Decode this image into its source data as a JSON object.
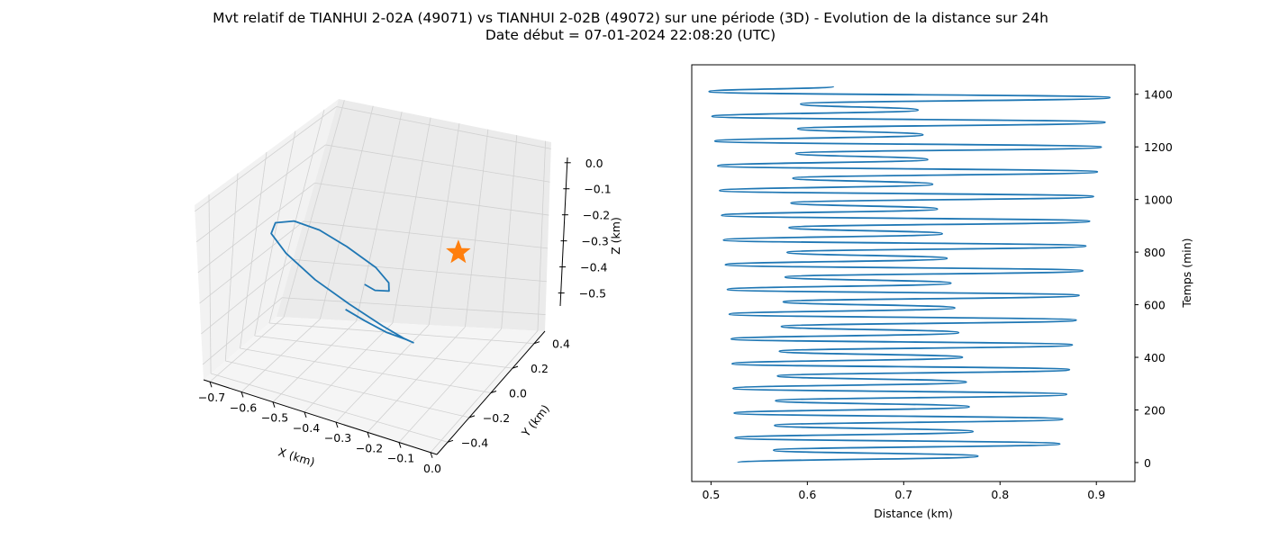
{
  "figure": {
    "title_line1": "Mvt relatif de TIANHUI 2-02A (49071) vs TIANHUI 2-02B (49072) sur une période (3D) - Evolution de la distance sur 24h",
    "title_line2": "Date début = 07-01-2024 22:08:20 (UTC)"
  },
  "chart_data": [
    {
      "type": "line3d",
      "xlabel": "X (km)",
      "ylabel": "Y (km)",
      "zlabel": "Z (km)",
      "x_ticks": [
        "−0.7",
        "−0.6",
        "−0.5",
        "−0.4",
        "−0.3",
        "−0.2",
        "−0.1",
        "0.0"
      ],
      "y_ticks": [
        "−0.4",
        "−0.2",
        "0.0",
        "0.2",
        "0.4"
      ],
      "z_ticks": [
        "0.0",
        "−0.1",
        "−0.2",
        "−0.3",
        "−0.4",
        "−0.5"
      ],
      "xlim": [
        -0.72,
        0.02
      ],
      "ylim": [
        -0.5,
        0.5
      ],
      "zlim": [
        -0.55,
        0.02
      ],
      "series_color": "#1f77b4",
      "marker": {
        "symbol": "star",
        "color": "#ff7f0e",
        "x": 0.0,
        "y": 0.0,
        "z": 0.0
      },
      "path_3d": [
        [
          -0.28,
          -0.38,
          -0.2
        ],
        [
          -0.24,
          -0.3,
          -0.24
        ],
        [
          -0.2,
          -0.18,
          -0.29
        ],
        [
          -0.17,
          -0.05,
          -0.33
        ],
        [
          -0.18,
          0.08,
          -0.37
        ],
        [
          -0.24,
          0.2,
          -0.4
        ],
        [
          -0.33,
          0.3,
          -0.41
        ],
        [
          -0.45,
          0.36,
          -0.39
        ],
        [
          -0.55,
          0.34,
          -0.34
        ],
        [
          -0.62,
          0.26,
          -0.26
        ],
        [
          -0.63,
          0.12,
          -0.17
        ],
        [
          -0.58,
          -0.02,
          -0.09
        ],
        [
          -0.49,
          -0.14,
          -0.03
        ],
        [
          -0.39,
          -0.22,
          -0.01
        ],
        [
          -0.3,
          -0.24,
          -0.03
        ],
        [
          -0.22,
          -0.2,
          -0.08
        ],
        [
          -0.2,
          -0.12,
          -0.14
        ],
        [
          -0.22,
          -0.04,
          -0.19
        ],
        [
          -0.28,
          0.02,
          -0.22
        ],
        [
          -0.32,
          0.05,
          -0.22
        ]
      ]
    },
    {
      "type": "line",
      "xlabel": "Distance (km)",
      "ylabel": "Temps (min)",
      "x_ticks": [
        "0.5",
        "0.6",
        "0.7",
        "0.8",
        "0.9"
      ],
      "y_ticks": [
        "0",
        "200",
        "400",
        "600",
        "800",
        "1000",
        "1200",
        "1400"
      ],
      "xlim": [
        0.48,
        0.94
      ],
      "ylim": [
        -72,
        1512
      ],
      "x_values_desc": "Distance oscillates between a slowly decreasing minimum and increasing maximum with ~47 min half-period",
      "samples": [
        [
          0.528,
          0
        ],
        [
          0.777,
          24
        ],
        [
          0.565,
          47
        ],
        [
          0.862,
          71
        ],
        [
          0.525,
          94
        ],
        [
          0.772,
          118
        ],
        [
          0.566,
          141
        ],
        [
          0.865,
          165
        ],
        [
          0.524,
          188
        ],
        [
          0.768,
          212
        ],
        [
          0.567,
          235
        ],
        [
          0.869,
          259
        ],
        [
          0.523,
          282
        ],
        [
          0.765,
          306
        ],
        [
          0.569,
          329
        ],
        [
          0.872,
          353
        ],
        [
          0.522,
          376
        ],
        [
          0.761,
          400
        ],
        [
          0.571,
          423
        ],
        [
          0.875,
          447
        ],
        [
          0.521,
          470
        ],
        [
          0.757,
          494
        ],
        [
          0.573,
          517
        ],
        [
          0.879,
          541
        ],
        [
          0.519,
          564
        ],
        [
          0.753,
          588
        ],
        [
          0.575,
          611
        ],
        [
          0.882,
          635
        ],
        [
          0.517,
          658
        ],
        [
          0.749,
          682
        ],
        [
          0.577,
          705
        ],
        [
          0.886,
          729
        ],
        [
          0.515,
          752
        ],
        [
          0.745,
          776
        ],
        [
          0.579,
          799
        ],
        [
          0.889,
          823
        ],
        [
          0.513,
          846
        ],
        [
          0.74,
          870
        ],
        [
          0.581,
          893
        ],
        [
          0.893,
          917
        ],
        [
          0.511,
          940
        ],
        [
          0.735,
          964
        ],
        [
          0.583,
          987
        ],
        [
          0.897,
          1011
        ],
        [
          0.509,
          1034
        ],
        [
          0.73,
          1058
        ],
        [
          0.585,
          1081
        ],
        [
          0.901,
          1105
        ],
        [
          0.507,
          1128
        ],
        [
          0.725,
          1152
        ],
        [
          0.588,
          1175
        ],
        [
          0.905,
          1199
        ],
        [
          0.504,
          1222
        ],
        [
          0.72,
          1246
        ],
        [
          0.59,
          1269
        ],
        [
          0.909,
          1293
        ],
        [
          0.501,
          1316
        ],
        [
          0.715,
          1340
        ],
        [
          0.593,
          1363
        ],
        [
          0.914,
          1387
        ],
        [
          0.498,
          1410
        ],
        [
          0.627,
          1430
        ]
      ],
      "series_color": "#1f77b4"
    }
  ]
}
